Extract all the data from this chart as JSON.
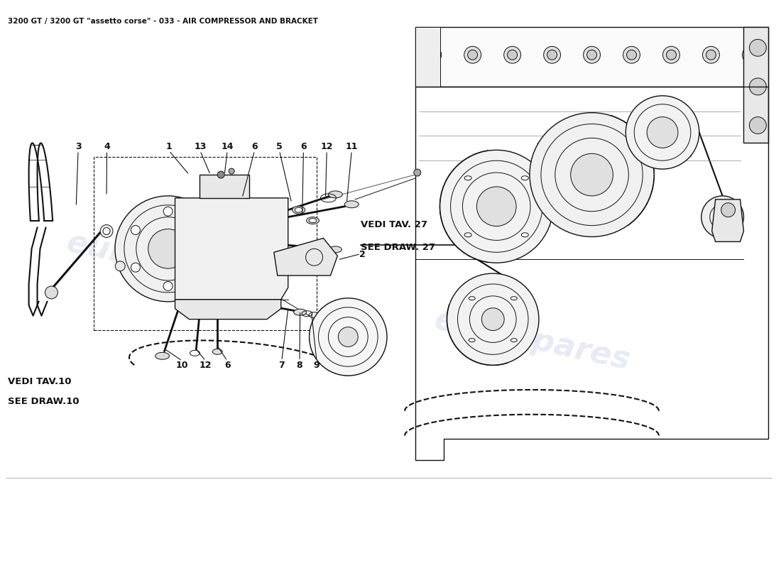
{
  "title": "3200 GT / 3200 GT \"assetto corse\" - 033 - AIR COMPRESSOR AND BRACKET",
  "title_fontsize": 7.5,
  "background_color": "#ffffff",
  "watermark_text": "eurospares",
  "watermark_color": "#c8d4e8",
  "watermark_alpha": 0.45,
  "line_color": "#111111",
  "figsize": [
    11.0,
    8.0
  ],
  "dpi": 100,
  "vedi_tav27": "VEDI TAV. 27\nSEE DRAW. 27",
  "vedi_tav10": "VEDI TAV.10\nSEE DRAW.10",
  "parts_top": [
    [
      "3",
      0.098
    ],
    [
      "4",
      0.135
    ],
    [
      "1",
      0.215
    ],
    [
      "13",
      0.255
    ],
    [
      "14",
      0.29
    ],
    [
      "6",
      0.325
    ],
    [
      "5",
      0.357
    ],
    [
      "6",
      0.388
    ],
    [
      "12",
      0.418
    ],
    [
      "11",
      0.45
    ]
  ],
  "parts_bottom": [
    [
      "10",
      0.232
    ],
    [
      "12",
      0.262
    ],
    [
      "6",
      0.29
    ],
    [
      "7",
      0.36
    ],
    [
      "8",
      0.383
    ],
    [
      "9",
      0.405
    ]
  ]
}
